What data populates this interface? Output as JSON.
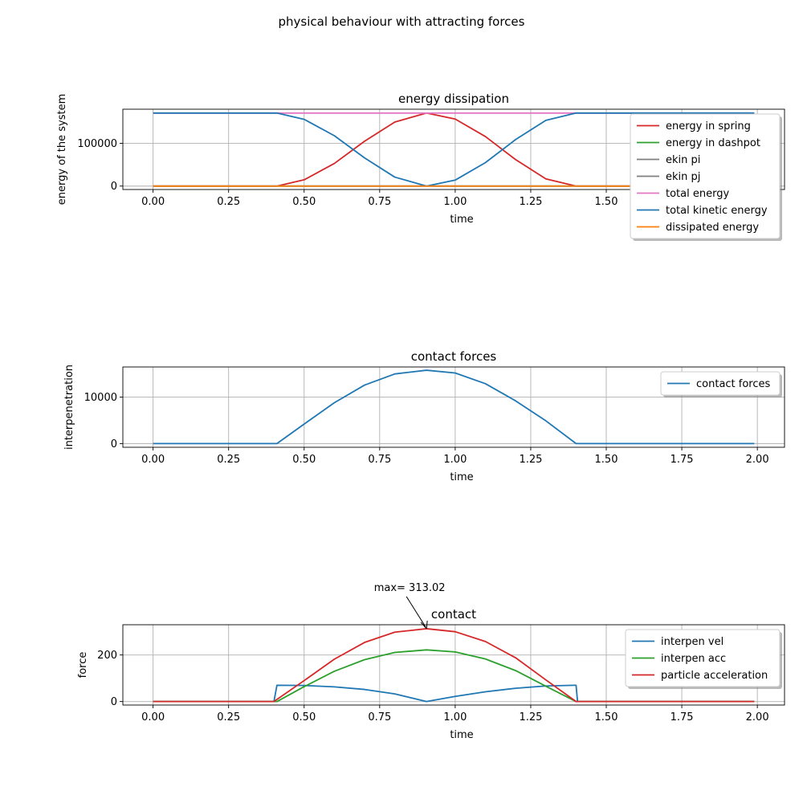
{
  "figure": {
    "suptitle": "physical behaviour with attracting forces"
  },
  "chart_data": [
    {
      "type": "line",
      "title": "energy dissipation",
      "xlabel": "time",
      "ylabel": "energy of the system",
      "xlim": [
        -0.1,
        2.09
      ],
      "ylim": [
        -8000,
        180000
      ],
      "xticks": [
        0.0,
        0.25,
        0.5,
        0.75,
        1.0,
        1.25,
        1.5,
        1.75,
        2.0
      ],
      "xtick_labels": [
        "0.00",
        "0.25",
        "0.50",
        "0.75",
        "1.00",
        "1.25",
        "1.50",
        "1.75",
        "2.00"
      ],
      "yticks": [
        0,
        100000
      ],
      "ytick_labels": [
        "0",
        "100000"
      ],
      "grid": true,
      "legend_position": "upper right",
      "contact_window": [
        0.41,
        1.4
      ],
      "series": [
        {
          "name": "energy in spring",
          "color": "#d62728",
          "x": [
            0.0,
            0.41,
            0.5,
            0.6,
            0.7,
            0.8,
            0.905,
            1.0,
            1.1,
            1.2,
            1.3,
            1.4,
            1.99
          ],
          "y": [
            0,
            0,
            14700,
            53000,
            105000,
            150000,
            171000,
            157000,
            116000,
            62000,
            17000,
            0,
            0
          ]
        },
        {
          "name": "energy in dashpot",
          "color": "#2ca02c",
          "x": [
            0.0,
            1.99
          ],
          "y": [
            0,
            0
          ]
        },
        {
          "name": "ekin pi",
          "color": "#7f7f7f",
          "x": [
            0.0,
            1.99
          ],
          "y": [
            0,
            0
          ]
        },
        {
          "name": "ekin pj",
          "color": "#7f7f7f",
          "x": [
            0.0,
            1.99
          ],
          "y": [
            0,
            0
          ]
        },
        {
          "name": "total energy",
          "color": "#e377c2",
          "x": [
            0.0,
            1.99
          ],
          "y": [
            171000,
            171000
          ]
        },
        {
          "name": "total kinetic energy",
          "color": "#1f77b4",
          "x": [
            0.0,
            0.41,
            0.5,
            0.6,
            0.7,
            0.8,
            0.905,
            1.0,
            1.1,
            1.2,
            1.3,
            1.4,
            1.99
          ],
          "y": [
            171000,
            171000,
            156300,
            118000,
            66000,
            21000,
            0,
            14000,
            55000,
            109000,
            154000,
            171000,
            171000
          ]
        },
        {
          "name": "dissipated energy",
          "color": "#ff7f0e",
          "x": [
            0.0,
            1.99
          ],
          "y": [
            0,
            0
          ]
        }
      ]
    },
    {
      "type": "line",
      "title": "contact forces",
      "xlabel": "time",
      "ylabel": "interpenetration",
      "xlim": [
        -0.1,
        2.09
      ],
      "ylim": [
        -800,
        16500
      ],
      "xticks": [
        0.0,
        0.25,
        0.5,
        0.75,
        1.0,
        1.25,
        1.5,
        1.75,
        2.0
      ],
      "xtick_labels": [
        "0.00",
        "0.25",
        "0.50",
        "0.75",
        "1.00",
        "1.25",
        "1.50",
        "1.75",
        "2.00"
      ],
      "yticks": [
        0,
        10000
      ],
      "ytick_labels": [
        "0",
        "10000"
      ],
      "grid": true,
      "legend_position": "upper right",
      "series": [
        {
          "name": "contact forces",
          "color": "#1f77b4",
          "x": [
            0.0,
            0.41,
            0.5,
            0.6,
            0.7,
            0.8,
            0.905,
            1.0,
            1.1,
            1.2,
            1.3,
            1.4,
            1.99
          ],
          "y": [
            0,
            0,
            4200,
            8800,
            12600,
            15000,
            15800,
            15200,
            12900,
            9200,
            4900,
            0,
            0
          ]
        }
      ]
    },
    {
      "type": "line",
      "title": "contact",
      "xlabel": "time",
      "ylabel": "force",
      "xlim": [
        -0.1,
        2.09
      ],
      "ylim": [
        -15,
        330
      ],
      "xticks": [
        0.0,
        0.25,
        0.5,
        0.75,
        1.0,
        1.25,
        1.5,
        1.75,
        2.0
      ],
      "xtick_labels": [
        "0.00",
        "0.25",
        "0.50",
        "0.75",
        "1.00",
        "1.25",
        "1.50",
        "1.75",
        "2.00"
      ],
      "yticks": [
        0,
        200
      ],
      "ytick_labels": [
        "0",
        "200"
      ],
      "grid": true,
      "legend_position": "upper right",
      "annotation": {
        "text": "max= 313.02",
        "x": 0.905,
        "y": 313.02
      },
      "series": [
        {
          "name": "interpen vel",
          "color": "#1f77b4",
          "x": [
            0.0,
            0.4,
            0.41,
            0.5,
            0.6,
            0.7,
            0.8,
            0.905,
            1.0,
            1.1,
            1.2,
            1.3,
            1.395,
            1.4,
            1.405,
            1.99
          ],
          "y": [
            0,
            0,
            70,
            69,
            63,
            52,
            33,
            0,
            22,
            42,
            57,
            67,
            70,
            70,
            0,
            0
          ]
        },
        {
          "name": "interpen acc",
          "color": "#2ca02c",
          "x": [
            0.0,
            0.41,
            0.5,
            0.6,
            0.7,
            0.8,
            0.905,
            1.0,
            1.1,
            1.2,
            1.3,
            1.4,
            1.99
          ],
          "y": [
            0,
            0,
            64,
            130,
            180,
            211,
            222,
            213,
            183,
            133,
            66,
            0,
            0
          ]
        },
        {
          "name": "particle acceleration",
          "color": "#d62728",
          "x": [
            0.0,
            0.4,
            0.5,
            0.6,
            0.7,
            0.8,
            0.905,
            1.0,
            1.1,
            1.2,
            1.3,
            1.4,
            1.99
          ],
          "y": [
            0,
            0,
            90,
            182,
            254,
            298,
            313.02,
            300,
            258,
            188,
            93,
            0,
            0
          ]
        }
      ]
    }
  ]
}
